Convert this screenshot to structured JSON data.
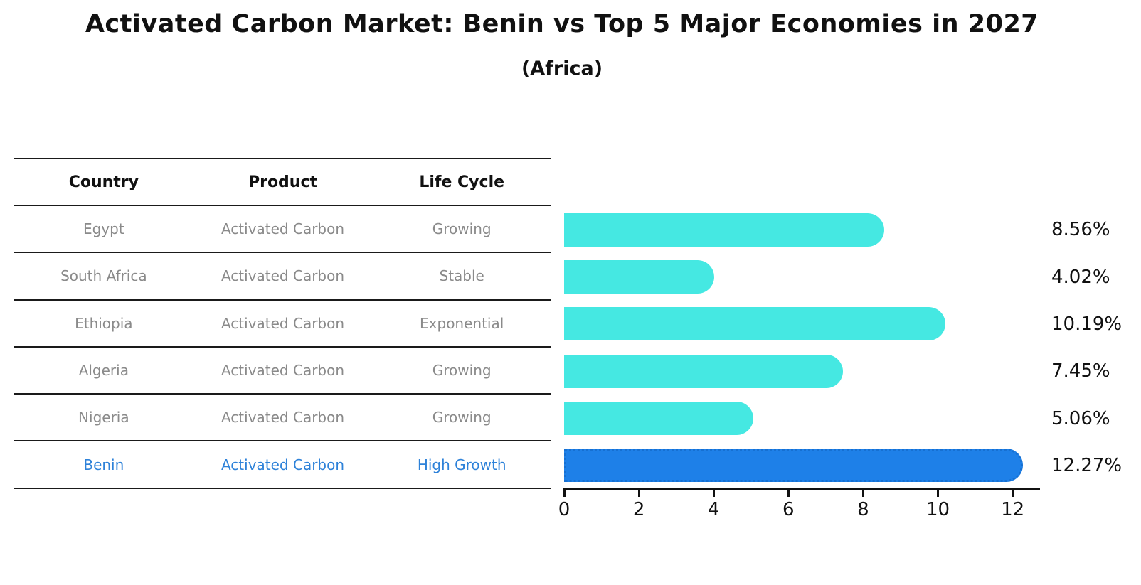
{
  "title": "Activated Carbon Market: Benin vs Top 5 Major Economies in 2027",
  "subtitle": "(Africa)",
  "table": {
    "headers": {
      "country": "Country",
      "product": "Product",
      "life_cycle": "Life Cycle"
    },
    "rows": [
      {
        "country": "Egypt",
        "product": "Activated Carbon",
        "life_cycle": "Growing",
        "highlight": false
      },
      {
        "country": "South Africa",
        "product": "Activated Carbon",
        "life_cycle": "Stable",
        "highlight": false
      },
      {
        "country": "Ethiopia",
        "product": "Activated Carbon",
        "life_cycle": "Exponential",
        "highlight": false
      },
      {
        "country": "Algeria",
        "product": "Activated Carbon",
        "life_cycle": "Growing",
        "highlight": false
      },
      {
        "country": "Nigeria",
        "product": "Activated Carbon",
        "life_cycle": "Growing",
        "highlight": false
      },
      {
        "country": "Benin",
        "product": "Activated Carbon",
        "life_cycle": "High Growth",
        "highlight": true
      }
    ]
  },
  "chart_data": {
    "type": "bar",
    "orientation": "horizontal",
    "categories": [
      "Egypt",
      "South Africa",
      "Ethiopia",
      "Algeria",
      "Nigeria",
      "Benin"
    ],
    "values": [
      8.56,
      4.02,
      10.19,
      7.45,
      5.06,
      12.27
    ],
    "value_labels": [
      "8.56%",
      "4.02%",
      "10.19%",
      "7.45%",
      "5.06%",
      "12.27%"
    ],
    "x_ticks": [
      0,
      2,
      4,
      6,
      8,
      10,
      12
    ],
    "xlim": [
      0,
      12.73
    ],
    "grid": false,
    "legend": false,
    "bar_color": "#45e8e2",
    "highlight_color": "#1e80e8",
    "highlight_border_color": "#1670d2",
    "highlight_index": 5,
    "highlight_text_color": "#2e82d9",
    "label_color": "#111111"
  }
}
